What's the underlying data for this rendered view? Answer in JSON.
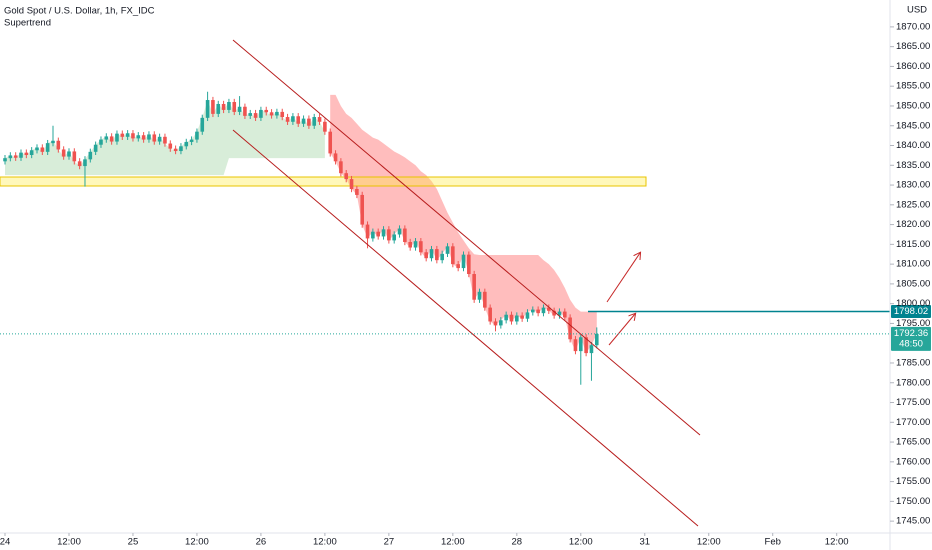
{
  "chart_data": {
    "type": "candlestick",
    "title": "Gold Spot / U.S. Dollar, 1h, FX_IDC",
    "indicator": "Supertrend",
    "currency": "USD",
    "up_color": "#26a69a",
    "down_color": "#ef5350",
    "open": [
      1836.0,
      1836.8,
      1837.5,
      1836.9,
      1838.2,
      1837.6,
      1838.8,
      1839.5,
      1838.4,
      1840.6,
      1841.2,
      1839.0,
      1837.2,
      1838.5,
      1836.0,
      1834.8,
      1836.5,
      1838.4,
      1840.2,
      1841.5,
      1842.3,
      1841.0,
      1843.0,
      1842.2,
      1843.1,
      1841.8,
      1842.6,
      1841.5,
      1842.8,
      1841.0,
      1842.2,
      1840.5,
      1839.2,
      1838.6,
      1839.8,
      1840.9,
      1841.5,
      1843.5,
      1847.0,
      1851.5,
      1848.0,
      1850.5,
      1849.0,
      1851.0,
      1848.5,
      1849.8,
      1847.5,
      1848.2,
      1847.0,
      1849.0,
      1848.4,
      1847.6,
      1848.5,
      1847.2,
      1846.0,
      1847.4,
      1845.5,
      1846.8,
      1845.0,
      1847.2,
      1846.0,
      1843.5,
      1838.0,
      1836.0,
      1833.0,
      1831.5,
      1829.0,
      1827.5,
      1820.0,
      1816.5,
      1818.2,
      1817.0,
      1818.8,
      1816.0,
      1817.5,
      1819.0,
      1815.6,
      1814.2,
      1815.8,
      1813.0,
      1811.5,
      1813.8,
      1811.0,
      1812.6,
      1814.5,
      1810.0,
      1809.0,
      1812.4,
      1807.5,
      1801.0,
      1803.0,
      1799.0,
      1795.5,
      1794.5,
      1795.8,
      1797.2,
      1795.5,
      1797.0,
      1796.2,
      1797.8,
      1798.5,
      1797.6,
      1799.0,
      1798.2,
      1797.0,
      1798.0,
      1796.5,
      1791.0,
      1788.0,
      1791.5,
      1787.5,
      1789.5
    ],
    "high": [
      1837.6,
      1838.3,
      1838.3,
      1839.0,
      1839.0,
      1839.6,
      1840.3,
      1840.3,
      1841.4,
      1845.0,
      1842.0,
      1839.8,
      1839.3,
      1839.3,
      1836.8,
      1837.3,
      1839.2,
      1841.0,
      1842.3,
      1843.1,
      1843.1,
      1843.8,
      1843.8,
      1843.9,
      1843.9,
      1843.4,
      1843.4,
      1843.6,
      1843.6,
      1843.0,
      1843.0,
      1841.3,
      1840.0,
      1840.6,
      1841.7,
      1842.3,
      1844.3,
      1847.8,
      1853.6,
      1852.3,
      1851.3,
      1851.3,
      1851.8,
      1851.8,
      1852.5,
      1850.6,
      1849.0,
      1849.0,
      1849.8,
      1849.8,
      1849.2,
      1849.3,
      1849.3,
      1848.0,
      1848.2,
      1848.2,
      1847.6,
      1847.6,
      1848.0,
      1848.0,
      1846.8,
      1844.3,
      1838.8,
      1836.8,
      1833.8,
      1832.3,
      1829.8,
      1828.3,
      1820.8,
      1819.0,
      1819.0,
      1819.6,
      1819.6,
      1818.3,
      1819.8,
      1819.8,
      1816.4,
      1816.6,
      1816.6,
      1813.8,
      1814.6,
      1814.6,
      1813.4,
      1815.3,
      1815.3,
      1810.8,
      1813.2,
      1813.2,
      1808.3,
      1803.8,
      1803.8,
      1799.8,
      1796.3,
      1796.6,
      1798.0,
      1798.0,
      1797.8,
      1797.8,
      1798.6,
      1799.3,
      1799.3,
      1799.8,
      1799.8,
      1799.0,
      1798.8,
      1798.8,
      1797.3,
      1791.8,
      1792.3,
      1792.3,
      1790.3,
      1794.0
    ],
    "low": [
      1835.2,
      1836.0,
      1836.1,
      1836.1,
      1836.8,
      1836.8,
      1838.0,
      1837.6,
      1837.6,
      1839.8,
      1838.2,
      1836.4,
      1836.4,
      1835.2,
      1834.0,
      1829.6,
      1835.7,
      1837.6,
      1839.4,
      1840.7,
      1840.2,
      1840.2,
      1841.4,
      1841.4,
      1841.0,
      1841.0,
      1840.7,
      1840.7,
      1840.2,
      1840.2,
      1839.7,
      1838.4,
      1837.8,
      1837.8,
      1839.0,
      1840.1,
      1840.7,
      1842.7,
      1846.2,
      1847.2,
      1847.2,
      1848.2,
      1848.2,
      1847.7,
      1847.7,
      1846.7,
      1846.7,
      1846.2,
      1846.2,
      1847.6,
      1846.8,
      1846.8,
      1846.4,
      1845.2,
      1845.2,
      1844.7,
      1844.7,
      1844.2,
      1844.2,
      1845.2,
      1842.7,
      1837.2,
      1835.2,
      1832.2,
      1830.7,
      1828.2,
      1826.7,
      1819.2,
      1814.0,
      1815.7,
      1816.2,
      1816.2,
      1815.2,
      1815.2,
      1816.7,
      1814.8,
      1813.4,
      1813.4,
      1812.2,
      1810.7,
      1810.7,
      1810.2,
      1810.2,
      1811.8,
      1809.2,
      1808.2,
      1808.2,
      1806.7,
      1800.2,
      1800.2,
      1798.2,
      1794.7,
      1793.0,
      1793.7,
      1795.0,
      1794.7,
      1794.7,
      1795.4,
      1795.4,
      1797.0,
      1796.8,
      1796.8,
      1797.4,
      1796.2,
      1796.2,
      1795.7,
      1790.2,
      1787.2,
      1779.5,
      1786.7,
      1780.5,
      1788.7
    ],
    "close": [
      1836.8,
      1837.5,
      1836.9,
      1838.2,
      1837.6,
      1838.8,
      1839.5,
      1838.4,
      1840.6,
      1841.2,
      1839.0,
      1837.2,
      1838.5,
      1836.0,
      1834.8,
      1836.5,
      1838.4,
      1840.2,
      1841.5,
      1842.3,
      1841.0,
      1843.0,
      1842.2,
      1843.1,
      1841.8,
      1842.6,
      1841.5,
      1842.8,
      1841.0,
      1842.2,
      1840.5,
      1839.2,
      1838.6,
      1839.8,
      1840.9,
      1841.5,
      1843.5,
      1847.0,
      1851.5,
      1848.0,
      1850.5,
      1849.0,
      1851.0,
      1848.5,
      1849.8,
      1847.5,
      1848.2,
      1847.0,
      1849.0,
      1848.4,
      1847.6,
      1848.5,
      1847.2,
      1846.0,
      1847.4,
      1845.5,
      1846.8,
      1845.0,
      1847.2,
      1846.0,
      1843.5,
      1838.0,
      1836.0,
      1833.0,
      1831.5,
      1829.0,
      1827.5,
      1820.0,
      1816.5,
      1818.2,
      1817.0,
      1818.8,
      1816.0,
      1817.5,
      1819.0,
      1815.6,
      1814.2,
      1815.8,
      1813.0,
      1811.5,
      1813.8,
      1811.0,
      1812.6,
      1814.5,
      1810.0,
      1809.0,
      1812.4,
      1807.5,
      1801.0,
      1803.0,
      1799.0,
      1795.5,
      1794.5,
      1795.8,
      1797.2,
      1795.5,
      1797.0,
      1796.2,
      1797.8,
      1798.5,
      1797.6,
      1799.0,
      1798.2,
      1797.0,
      1798.0,
      1796.5,
      1791.0,
      1788.0,
      1791.5,
      1787.5,
      1789.5,
      1792.36
    ],
    "supertrend_up": [
      1832.5,
      1832.5,
      1832.5,
      1832.5,
      1832.5,
      1832.5,
      1832.5,
      1832.5,
      1832.5,
      1832.5,
      1832.5,
      1832.5,
      1832.5,
      1832.5,
      1832.5,
      1832.5,
      1832.5,
      1832.5,
      1832.5,
      1832.5,
      1832.5,
      1832.5,
      1832.5,
      1832.5,
      1832.5,
      1832.5,
      1832.5,
      1832.5,
      1832.5,
      1832.5,
      1832.5,
      1832.5,
      1832.5,
      1832.5,
      1832.5,
      1832.5,
      1832.5,
      1832.5,
      1832.5,
      1832.5,
      1832.5,
      1832.5,
      1836.8,
      1836.8,
      1836.8,
      1836.8,
      1836.8,
      1836.8,
      1836.8,
      1836.8,
      1836.8,
      1836.8,
      1836.8,
      1836.8,
      1836.8,
      1836.8,
      1836.8,
      1836.8,
      1836.8,
      1836.8,
      1836.8,
      null,
      null,
      null,
      null,
      null,
      null,
      null,
      null,
      null,
      null,
      null,
      null,
      null,
      null,
      null,
      null,
      null,
      null,
      null,
      null,
      null,
      null,
      null,
      null,
      null,
      null,
      null,
      null,
      null,
      null,
      null,
      null,
      null,
      null,
      null,
      null,
      null,
      null,
      null,
      null,
      null,
      null,
      null,
      null,
      null,
      null,
      null,
      null,
      null,
      null,
      null
    ],
    "supertrend_down": [
      null,
      null,
      null,
      null,
      null,
      null,
      null,
      null,
      null,
      null,
      null,
      null,
      null,
      null,
      null,
      null,
      null,
      null,
      null,
      null,
      null,
      null,
      null,
      null,
      null,
      null,
      null,
      null,
      null,
      null,
      null,
      null,
      null,
      null,
      null,
      null,
      null,
      null,
      null,
      null,
      null,
      null,
      null,
      null,
      null,
      null,
      null,
      null,
      null,
      null,
      null,
      null,
      null,
      null,
      null,
      null,
      null,
      null,
      null,
      null,
      null,
      1852.8,
      1852.8,
      1850,
      1848,
      1847,
      1845.5,
      1844,
      1843,
      1842,
      1841.5,
      1840.5,
      1839.5,
      1838.5,
      1837.8,
      1837,
      1836,
      1835,
      1833.5,
      1832.5,
      1831,
      1829,
      1826,
      1823,
      1820.5,
      1818,
      1816,
      1814,
      1812.5,
      1812.3,
      1812.3,
      1812.3,
      1812.3,
      1812.3,
      1812.3,
      1812.3,
      1812.3,
      1812.3,
      1812.3,
      1812.3,
      1812.3,
      1811,
      1810,
      1808.5,
      1806.5,
      1804,
      1801,
      1799,
      1798,
      1798,
      1798,
      1798
    ],
    "horizontal_line": 1798.02,
    "countdown": "48:50",
    "xlim": [
      -0.94,
      166
    ],
    "xticks": [
      {
        "value": 0,
        "label": "24"
      },
      {
        "value": 12,
        "label": "12:00"
      },
      {
        "value": 24,
        "label": "25"
      },
      {
        "value": 36,
        "label": "12:00"
      },
      {
        "value": 48,
        "label": "26"
      },
      {
        "value": 60,
        "label": "12:00"
      },
      {
        "value": 72,
        "label": "27"
      },
      {
        "value": 84,
        "label": "12:00"
      },
      {
        "value": 96,
        "label": "28"
      },
      {
        "value": 108,
        "label": "12:00"
      },
      {
        "value": 120,
        "label": "31"
      },
      {
        "value": 132,
        "label": "12:00"
      },
      {
        "value": 144,
        "label": "Feb"
      },
      {
        "value": 156,
        "label": "12:00"
      }
    ],
    "ylim": [
      1742,
      1876.8
    ],
    "yticks": [
      {
        "value": 1745,
        "label": "1745.00"
      },
      {
        "value": 1750,
        "label": "1750.00"
      },
      {
        "value": 1755,
        "label": "1755.00"
      },
      {
        "value": 1760,
        "label": "1760.00"
      },
      {
        "value": 1765,
        "label": "1765.00"
      },
      {
        "value": 1770,
        "label": "1770.00"
      },
      {
        "value": 1775,
        "label": "1775.00"
      },
      {
        "value": 1780,
        "label": "1780.00"
      },
      {
        "value": 1785,
        "label": "1785.00"
      },
      {
        "value": 1795,
        "label": "1795.00"
      },
      {
        "value": 1800,
        "label": "1800.00"
      },
      {
        "value": 1805,
        "label": "1805.00"
      },
      {
        "value": 1810,
        "label": "1810.00"
      },
      {
        "value": 1815,
        "label": "1815.00"
      },
      {
        "value": 1820,
        "label": "1820.00"
      },
      {
        "value": 1825,
        "label": "1825.00"
      },
      {
        "value": 1830,
        "label": "1830.00"
      },
      {
        "value": 1835,
        "label": "1835.00"
      },
      {
        "value": 1840,
        "label": "1840.00"
      },
      {
        "value": 1845,
        "label": "1845.00"
      },
      {
        "value": 1850,
        "label": "1850.00"
      },
      {
        "value": 1855,
        "label": "1855.00"
      },
      {
        "value": 1860,
        "label": "1860.00"
      },
      {
        "value": 1865,
        "label": "1865.00"
      },
      {
        "value": 1870,
        "label": "1870.00"
      }
    ],
    "grid": false
  }
}
